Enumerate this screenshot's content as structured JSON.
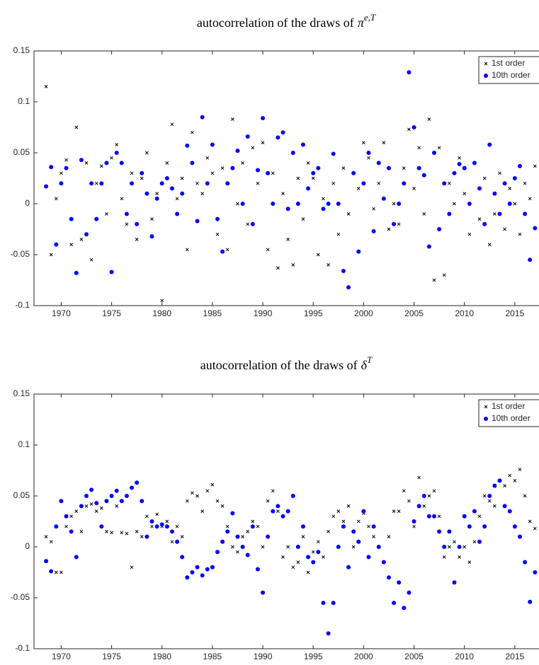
{
  "chart_data": [
    {
      "type": "scatter",
      "title": "autocorrelation of the draws of",
      "title_symbol": "π",
      "title_superscript": "e,T",
      "x": [
        1968.5,
        1969,
        1969.5,
        1970,
        1970.5,
        1971,
        1971.5,
        1972,
        1972.5,
        1973,
        1973.5,
        1974,
        1974.5,
        1975,
        1975.5,
        1976,
        1976.5,
        1977,
        1977.5,
        1978,
        1978.5,
        1979,
        1979.5,
        1980,
        1980.5,
        1981,
        1981.5,
        1982,
        1982.5,
        1983,
        1983.5,
        1984,
        1984.5,
        1985,
        1985.5,
        1986,
        1986.5,
        1987,
        1987.5,
        1988,
        1988.5,
        1989,
        1989.5,
        1990,
        1990.5,
        1991,
        1991.5,
        1992,
        1992.5,
        1993,
        1993.5,
        1994,
        1994.5,
        1995,
        1995.5,
        1996,
        1996.5,
        1997,
        1997.5,
        1998,
        1998.5,
        1999,
        1999.5,
        2000,
        2000.5,
        2001,
        2001.5,
        2002,
        2002.5,
        2003,
        2003.5,
        2004,
        2004.5,
        2005,
        2005.5,
        2006,
        2006.5,
        2007,
        2007.5,
        2008,
        2008.5,
        2009,
        2009.5,
        2010,
        2010.5,
        2011,
        2011.5,
        2012,
        2012.5,
        2013,
        2013.5,
        2014,
        2014.5,
        2015,
        2015.5,
        2016,
        2016.5,
        2017
      ],
      "series": [
        {
          "name": "1st order",
          "color": "#000000",
          "marker": "x",
          "values": [
            0.115,
            -0.05,
            0.005,
            0.03,
            0.043,
            -0.04,
            0.075,
            -0.035,
            0.04,
            -0.055,
            0.02,
            0.037,
            -0.01,
            0.045,
            0.058,
            0.005,
            -0.02,
            0.03,
            -0.035,
            0.025,
            0.05,
            -0.015,
            0.01,
            -0.095,
            0.04,
            0.078,
            0.005,
            0.025,
            -0.045,
            0.07,
            0.02,
            0.01,
            0.045,
            0.03,
            -0.03,
            0.035,
            -0.045,
            0.083,
            0.0,
            0.04,
            -0.02,
            0.055,
            0.02,
            0.06,
            -0.045,
            0.03,
            -0.063,
            0.01,
            -0.035,
            -0.06,
            0.025,
            -0.015,
            0.04,
            0.025,
            -0.05,
            0.005,
            -0.06,
            0.02,
            -0.03,
            0.035,
            -0.01,
            0.03,
            0.015,
            0.06,
            0.045,
            -0.005,
            0.02,
            0.06,
            -0.025,
            0.0,
            -0.02,
            0.035,
            0.073,
            0.015,
            0.055,
            -0.01,
            0.083,
            -0.075,
            0.055,
            -0.07,
            0.02,
            0.0,
            0.045,
            0.01,
            -0.03,
            0.04,
            -0.015,
            0.025,
            -0.04,
            -0.01,
            0.03,
            -0.025,
            0.015,
            0.0,
            -0.03,
            0.02,
            0.005,
            0.037
          ]
        },
        {
          "name": "10th order",
          "color": "#0000ff",
          "marker": "o",
          "values": [
            0.017,
            0.036,
            -0.04,
            0.02,
            0.035,
            -0.015,
            -0.068,
            0.043,
            -0.03,
            0.02,
            -0.015,
            0.02,
            0.04,
            -0.067,
            0.05,
            0.04,
            -0.01,
            0.02,
            -0.02,
            0.03,
            0.01,
            -0.032,
            0.005,
            0.02,
            0.025,
            0.015,
            -0.01,
            0.01,
            0.057,
            0.04,
            -0.017,
            0.085,
            0.02,
            0.058,
            -0.015,
            -0.047,
            0.02,
            0.035,
            0.052,
            0.0,
            0.066,
            -0.02,
            0.033,
            0.084,
            0.03,
            0.0,
            0.065,
            0.07,
            -0.005,
            0.05,
            0.0,
            0.058,
            0.015,
            0.03,
            0.035,
            -0.005,
            0.0,
            0.049,
            0.0,
            -0.066,
            -0.082,
            0.03,
            -0.047,
            0.02,
            0.05,
            -0.027,
            0.04,
            0.005,
            0.035,
            -0.02,
            0.0,
            0.02,
            0.129,
            0.075,
            0.035,
            0.028,
            -0.042,
            0.05,
            -0.025,
            0.02,
            -0.01,
            0.03,
            0.039,
            0.035,
            0.0,
            0.04,
            0.015,
            -0.02,
            0.058,
            0.01,
            -0.01,
            0.02,
            0.0,
            0.025,
            0.037,
            -0.01,
            -0.055,
            -0.024
          ]
        }
      ],
      "xlim": [
        1967.3,
        2017.4
      ],
      "xticks": [
        1970,
        1975,
        1980,
        1985,
        1990,
        1995,
        2000,
        2005,
        2010,
        2015
      ],
      "ylim": [
        -0.1,
        0.15
      ],
      "yticks": [
        -0.1,
        -0.05,
        0,
        0.05,
        0.1,
        0.15
      ],
      "legend": "upper right"
    },
    {
      "type": "scatter",
      "title": "autocorrelation of the draws of",
      "title_symbol": "δ",
      "title_superscript": "T",
      "x": [
        1968.5,
        1969,
        1969.5,
        1970,
        1970.5,
        1971,
        1971.5,
        1972,
        1972.5,
        1973,
        1973.5,
        1974,
        1974.5,
        1975,
        1975.5,
        1976,
        1976.5,
        1977,
        1977.5,
        1978,
        1978.5,
        1979,
        1979.5,
        1980,
        1980.5,
        1981,
        1981.5,
        1982,
        1982.5,
        1983,
        1983.5,
        1984,
        1984.5,
        1985,
        1985.5,
        1986,
        1986.5,
        1987,
        1987.5,
        1988,
        1988.5,
        1989,
        1989.5,
        1990,
        1990.5,
        1991,
        1991.5,
        1992,
        1992.5,
        1993,
        1993.5,
        1994,
        1994.5,
        1995,
        1995.5,
        1996,
        1996.5,
        1997,
        1997.5,
        1998,
        1998.5,
        1999,
        1999.5,
        2000,
        2000.5,
        2001,
        2001.5,
        2002,
        2002.5,
        2003,
        2003.5,
        2004,
        2004.5,
        2005,
        2005.5,
        2006,
        2006.5,
        2007,
        2007.5,
        2008,
        2008.5,
        2009,
        2009.5,
        2010,
        2010.5,
        2011,
        2011.5,
        2012,
        2012.5,
        2013,
        2013.5,
        2014,
        2014.5,
        2015,
        2015.5,
        2016,
        2016.5,
        2017
      ],
      "series": [
        {
          "name": "1st order",
          "color": "#000000",
          "marker": "x",
          "values": [
            0.01,
            0.005,
            -0.025,
            -0.025,
            0.02,
            0.03,
            0.035,
            0.015,
            0.04,
            0.042,
            0.035,
            0.038,
            0.015,
            0.014,
            0.04,
            0.014,
            0.013,
            -0.02,
            0.015,
            0.01,
            0.03,
            0.02,
            0.032,
            0.02,
            0.025,
            0.005,
            0.02,
            0.01,
            0.045,
            0.053,
            0.05,
            0.035,
            0.055,
            0.061,
            0.045,
            0.04,
            0.02,
            0.0,
            -0.005,
            0.01,
            0.015,
            0.025,
            0.02,
            0.0,
            0.045,
            0.055,
            0.035,
            -0.01,
            0.0,
            -0.02,
            -0.015,
            0.01,
            -0.025,
            -0.005,
            0.005,
            -0.01,
            0.015,
            0.03,
            0.035,
            0.025,
            0.04,
            0.0,
            0.025,
            0.033,
            0.02,
            0.01,
            0.0,
            -0.015,
            0.01,
            0.035,
            0.035,
            0.055,
            0.045,
            0.02,
            0.068,
            0.04,
            0.05,
            0.055,
            0.03,
            -0.01,
            0.0,
            0.005,
            -0.01,
            0.0,
            -0.015,
            0.005,
            0.03,
            0.05,
            0.045,
            0.04,
            0.065,
            0.06,
            0.07,
            0.065,
            0.076,
            0.05,
            0.025,
            0.018
          ]
        },
        {
          "name": "10th order",
          "color": "#0000ff",
          "marker": "o",
          "values": [
            -0.014,
            -0.024,
            0.02,
            0.045,
            0.03,
            0.015,
            -0.01,
            0.04,
            0.05,
            0.056,
            0.043,
            0.02,
            0.045,
            0.05,
            0.055,
            0.045,
            0.05,
            0.058,
            0.063,
            0.045,
            0.01,
            0.025,
            0.02,
            0.022,
            0.02,
            0.015,
            0.005,
            -0.01,
            -0.03,
            -0.025,
            -0.02,
            -0.028,
            -0.022,
            -0.02,
            -0.005,
            0.005,
            0.015,
            0.033,
            0.01,
            0.0,
            -0.008,
            0.02,
            -0.022,
            -0.045,
            0.01,
            0.035,
            0.04,
            0.03,
            0.035,
            0.05,
            0.0,
            0.02,
            -0.01,
            -0.015,
            -0.005,
            -0.055,
            -0.085,
            -0.055,
            0.0,
            0.02,
            -0.02,
            0.015,
            0.005,
            0.035,
            -0.01,
            0.02,
            0.0,
            -0.015,
            -0.03,
            -0.055,
            -0.035,
            -0.06,
            -0.045,
            0.025,
            0.04,
            0.05,
            0.03,
            0.03,
            0.015,
            0.0,
            0.015,
            -0.035,
            0.0,
            0.03,
            0.02,
            0.035,
            0.005,
            0.02,
            0.05,
            0.06,
            0.065,
            0.04,
            0.035,
            0.02,
            0.01,
            -0.015,
            -0.054,
            -0.025
          ]
        }
      ],
      "xlim": [
        1967.3,
        2017.4
      ],
      "xticks": [
        1970,
        1975,
        1980,
        1985,
        1990,
        1995,
        2000,
        2005,
        2010,
        2015
      ],
      "ylim": [
        -0.1,
        0.15
      ],
      "yticks": [
        -0.1,
        -0.05,
        0,
        0.05,
        0.1,
        0.15
      ],
      "legend": "upper right"
    }
  ]
}
